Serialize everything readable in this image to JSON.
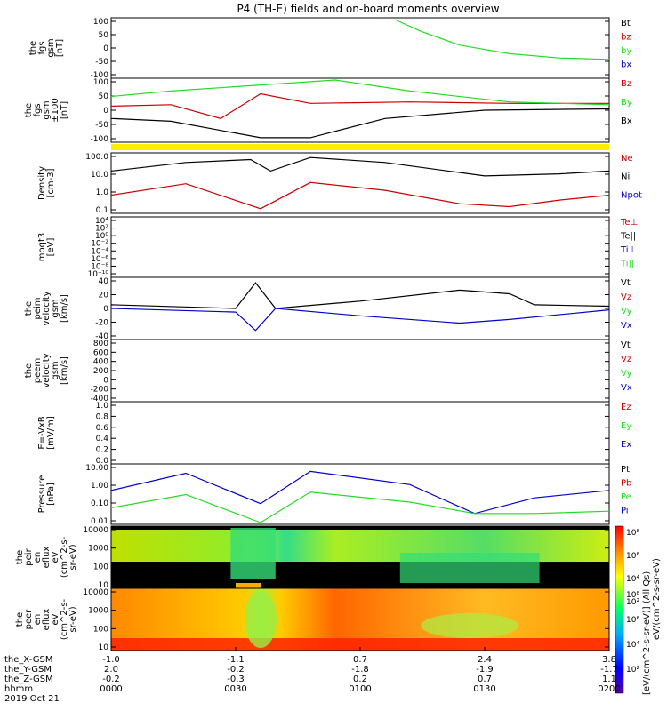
{
  "title": "P4 (TH-E) fields and on-board moments overview",
  "colors": {
    "black": "#000000",
    "red": "#cc0000",
    "green": "#22dd22",
    "blue": "#0000cc",
    "yellow": "#ffee00"
  },
  "panels": [
    {
      "key": "fgs",
      "ylabel": [
        "the",
        "fgs",
        "gsm",
        "[nT]"
      ],
      "ticks": [
        "100",
        "50",
        "0",
        "-50",
        "-100"
      ],
      "legend": [
        {
          "text": "Bt",
          "color": "black"
        },
        {
          "text": "bz",
          "color": "red"
        },
        {
          "text": "by",
          "color": "green"
        },
        {
          "text": "bx",
          "color": "blue"
        }
      ]
    },
    {
      "key": "fgs_clip",
      "ylabel": [
        "the",
        "fgs",
        "gsm",
        "±100",
        "[nT]"
      ],
      "ticks": [
        "100",
        "50",
        "0",
        "-50",
        "-100"
      ],
      "legend": [
        {
          "text": "Bz",
          "color": "red"
        },
        {
          "text": "By",
          "color": "green"
        },
        {
          "text": "Bx",
          "color": "black"
        }
      ]
    },
    {
      "key": "density",
      "ylabel": [
        "Density",
        "[cm-3]"
      ],
      "ticks": [
        "100.0",
        "10.0",
        "1.0",
        "0.1"
      ],
      "legend": [
        {
          "text": "Ne",
          "color": "red"
        },
        {
          "text": "Ni",
          "color": "black"
        },
        {
          "text": "Npot",
          "color": "blue"
        }
      ]
    },
    {
      "key": "temp",
      "ylabel": [
        "moqt3",
        "[eV]"
      ],
      "ticks": [
        "10⁴",
        "10²",
        "10⁰",
        "10⁻²",
        "10⁻⁴",
        "10⁻⁶",
        "10⁻⁸",
        "10⁻¹⁰"
      ],
      "legend": [
        {
          "text": "Te⊥",
          "color": "red"
        },
        {
          "text": "Te||",
          "color": "black"
        },
        {
          "text": "Ti⊥",
          "color": "blue"
        },
        {
          "text": "Ti||",
          "color": "green"
        }
      ]
    },
    {
      "key": "peim",
      "ylabel": [
        "the",
        "peim",
        "velocity",
        "gsm",
        "[km/s]"
      ],
      "ticks": [
        "40",
        "20",
        "0",
        "-20",
        "-40"
      ],
      "legend": [
        {
          "text": "Vt",
          "color": "black"
        },
        {
          "text": "Vz",
          "color": "red"
        },
        {
          "text": "Vy",
          "color": "green"
        },
        {
          "text": "Vx",
          "color": "blue"
        }
      ]
    },
    {
      "key": "peem",
      "ylabel": [
        "the",
        "peem",
        "velocity",
        "gsm",
        "[km/s]"
      ],
      "ticks": [
        "800",
        "600",
        "400",
        "200",
        "0",
        "-200",
        "-400"
      ],
      "legend": [
        {
          "text": "Vt",
          "color": "black"
        },
        {
          "text": "Vz",
          "color": "red"
        },
        {
          "text": "Vy",
          "color": "green"
        },
        {
          "text": "Vx",
          "color": "blue"
        }
      ]
    },
    {
      "key": "efield",
      "ylabel": [
        "E=-VxB",
        "[mV/m]"
      ],
      "ticks": [
        "1.0",
        "0.8",
        "0.6",
        "0.4",
        "0.2",
        "0.0"
      ],
      "legend": [
        {
          "text": "Ez",
          "color": "red"
        },
        {
          "text": "Ey",
          "color": "green"
        },
        {
          "text": "Ex",
          "color": "blue"
        }
      ]
    },
    {
      "key": "pressure",
      "ylabel": [
        "Pressure",
        "[nPa]"
      ],
      "ticks": [
        "10.00",
        "1.00",
        "0.10",
        "0.01"
      ],
      "legend": [
        {
          "text": "Pt",
          "color": "black"
        },
        {
          "text": "Pb",
          "color": "red"
        },
        {
          "text": "Pe",
          "color": "green"
        },
        {
          "text": "Pi",
          "color": "blue"
        }
      ]
    },
    {
      "key": "peir",
      "ylabel": [
        "the",
        "peir",
        "en",
        "eflux",
        "eV",
        "(cm^2-s-",
        "sr-eV)"
      ],
      "ticks": [
        "10000",
        "1000",
        "100",
        "10"
      ],
      "legend": []
    },
    {
      "key": "peer",
      "ylabel": [
        "the",
        "peer",
        "en",
        "eflux",
        "eV",
        "(cm^2-s-",
        "sr-eV)"
      ],
      "ticks": [
        "10000",
        "1000",
        "100",
        "10"
      ],
      "legend": []
    }
  ],
  "colorbar": {
    "ticks": [
      "10⁸",
      "10⁶",
      "10⁴",
      "10²"
    ],
    "label": "[eV/(cm^2-s-sr-eV)] (All Qs)",
    "label_overlap": "eV/(cm^2-s-sr-eV)"
  },
  "bottom_axis": {
    "row_labels": [
      "the_X-GSM",
      "the_Y-GSM",
      "the_Z-GSM",
      "hhmm",
      "2019 Oct 21"
    ],
    "columns": [
      {
        "x": "-1.0",
        "y": "2.0",
        "z": "-0.2",
        "time": "0000"
      },
      {
        "x": "-1.1",
        "y": "-0.2",
        "z": "-0.3",
        "time": "0030"
      },
      {
        "x": "0.7",
        "y": "-1.8",
        "z": "0.2",
        "time": "0100"
      },
      {
        "x": "2.4",
        "y": "-1.9",
        "z": "0.7",
        "time": "0130"
      },
      {
        "x": "3.8",
        "y": "-1.7",
        "z": "1.1",
        "time": "0200"
      }
    ]
  },
  "chart_data": {
    "type": "line",
    "title": "P4 (TH-E) fields and on-board moments overview",
    "x_time_hhmm": [
      "0000",
      "0030",
      "0100",
      "0130",
      "0200"
    ],
    "date": "2019 Oct 21",
    "series": [
      {
        "name": "by",
        "panel": "fgs",
        "t": [
          0.57,
          0.62,
          0.7,
          0.8,
          0.9,
          1.0
        ],
        "v": [
          100,
          60,
          10,
          -20,
          -35,
          -40
        ]
      },
      {
        "name": "Bz",
        "panel": "fgs_clip",
        "t": [
          0.0,
          0.12,
          0.22,
          0.3,
          0.4,
          0.6,
          0.8,
          1.0
        ],
        "v": [
          5,
          10,
          -40,
          50,
          15,
          20,
          15,
          15
        ]
      },
      {
        "name": "Bx",
        "panel": "fgs_clip",
        "t": [
          0.0,
          0.12,
          0.3,
          0.4,
          0.55,
          0.75,
          1.0
        ],
        "v": [
          -40,
          -50,
          -110,
          -110,
          -40,
          -10,
          -5
        ]
      },
      {
        "name": "By",
        "panel": "fgs_clip",
        "t": [
          0.0,
          0.12,
          0.45,
          0.6,
          0.8,
          1.0
        ],
        "v": [
          40,
          60,
          100,
          60,
          20,
          10
        ]
      },
      {
        "name": "Ni",
        "panel": "density",
        "t": [
          0.0,
          0.15,
          0.28,
          0.32,
          0.4,
          0.55,
          0.75,
          0.9,
          1.0
        ],
        "v": [
          30,
          100,
          150,
          30,
          200,
          100,
          15,
          20,
          30
        ]
      },
      {
        "name": "Ne",
        "panel": "density",
        "t": [
          0.0,
          0.15,
          0.3,
          0.4,
          0.55,
          0.7,
          0.8,
          0.9,
          1.0
        ],
        "v": [
          1,
          5,
          0.15,
          6,
          2,
          0.3,
          0.2,
          0.5,
          1
        ]
      },
      {
        "name": "Vt",
        "panel": "peim",
        "t": [
          0.0,
          0.25,
          0.29,
          0.33,
          0.5,
          0.7,
          0.8,
          0.85,
          1.0
        ],
        "v": [
          5,
          0,
          35,
          0,
          10,
          25,
          20,
          5,
          3
        ]
      },
      {
        "name": "Vx",
        "panel": "peim",
        "t": [
          0.0,
          0.25,
          0.29,
          0.33,
          0.5,
          0.7,
          0.8,
          1.0
        ],
        "v": [
          0,
          -5,
          -30,
          0,
          -10,
          -20,
          -15,
          -2
        ]
      },
      {
        "name": "Pi",
        "panel": "pressure",
        "t": [
          0.0,
          0.15,
          0.3,
          0.4,
          0.6,
          0.73,
          0.85,
          1.0
        ],
        "v": [
          0.5,
          4,
          0.1,
          5,
          1,
          0.03,
          0.2,
          0.5
        ]
      },
      {
        "name": "Pe",
        "panel": "pressure",
        "t": [
          0.0,
          0.15,
          0.3,
          0.4,
          0.6,
          0.73,
          0.85,
          1.0
        ],
        "v": [
          0.06,
          0.3,
          0.01,
          0.4,
          0.12,
          0.03,
          0.03,
          0.04
        ]
      }
    ]
  }
}
